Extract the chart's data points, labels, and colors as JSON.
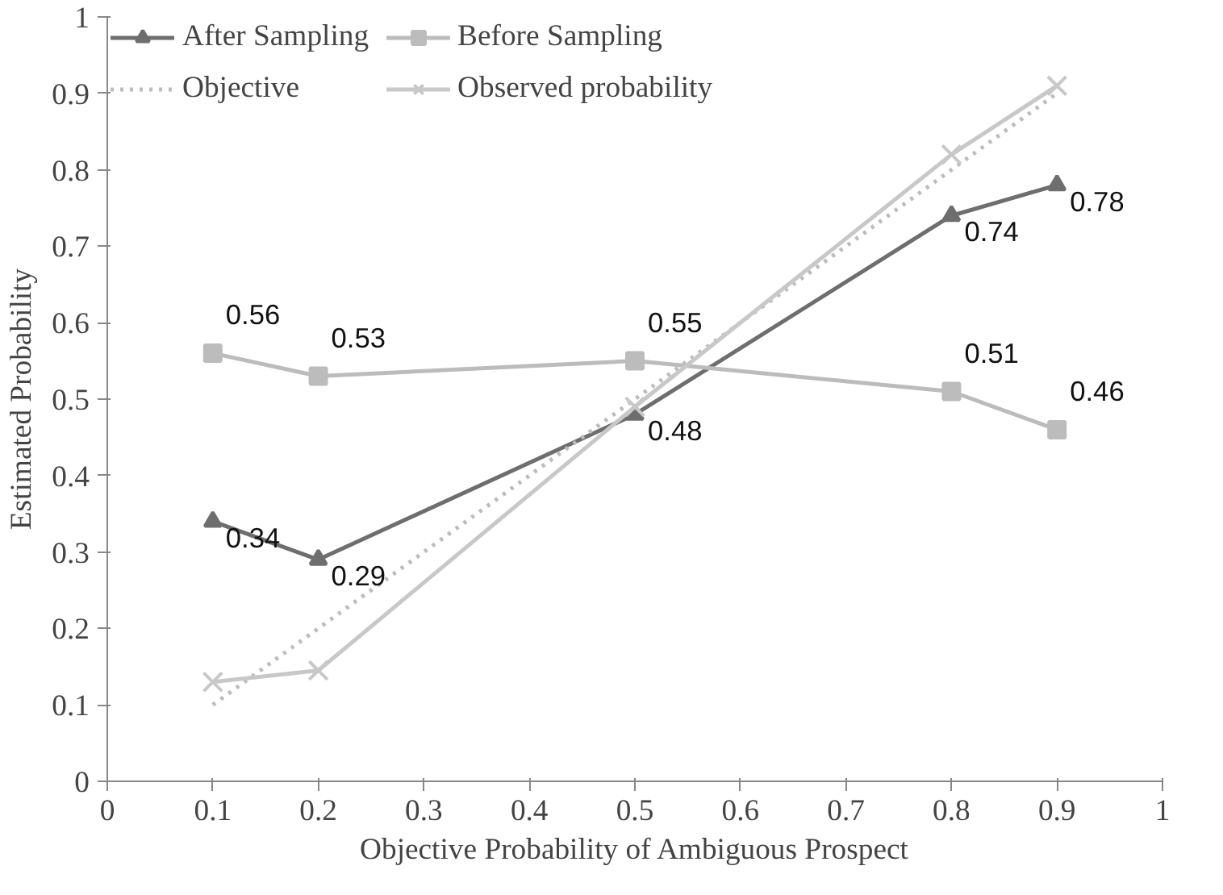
{
  "chart_data": {
    "type": "line",
    "xlabel": "Objective Probability of Ambiguous Prospect",
    "ylabel": "Estimated Probability",
    "x": [
      0.1,
      0.2,
      0.5,
      0.8,
      0.9
    ],
    "series": [
      {
        "name": "After Sampling",
        "color": "#6e6e6e",
        "values": [
          0.34,
          0.29,
          0.48,
          0.74,
          0.78
        ],
        "marker": "triangle",
        "line_style": "solid",
        "value_labels": [
          "0.34",
          "0.29",
          "0.48",
          "0.74",
          "0.78"
        ]
      },
      {
        "name": "Before Sampling",
        "color": "#bcbcbc",
        "values": [
          0.56,
          0.53,
          0.55,
          0.51,
          0.46
        ],
        "marker": "square",
        "line_style": "solid",
        "value_labels": [
          "0.56",
          "0.53",
          "0.55",
          "0.51",
          "0.46"
        ]
      },
      {
        "name": "Objective",
        "color": "#bdbdbd",
        "x": [
          0.1,
          0.9
        ],
        "values": [
          0.1,
          0.9
        ],
        "marker": "none",
        "line_style": "dotted"
      },
      {
        "name": "Observed probability",
        "color": "#c8c8c8",
        "values": [
          0.13,
          0.145,
          0.49,
          0.82,
          0.91
        ],
        "marker": "cross",
        "line_style": "solid"
      }
    ],
    "xlim": [
      0,
      1
    ],
    "xticks": [
      0,
      0.1,
      0.2,
      0.3,
      0.4,
      0.5,
      0.6,
      0.7,
      0.8,
      0.9,
      1
    ],
    "ylim": [
      0,
      1
    ],
    "yticks": [
      0,
      0.1,
      0.2,
      0.3,
      0.4,
      0.5,
      0.6,
      0.7,
      0.8,
      0.9,
      1
    ],
    "grid": false,
    "legend": "top left"
  }
}
